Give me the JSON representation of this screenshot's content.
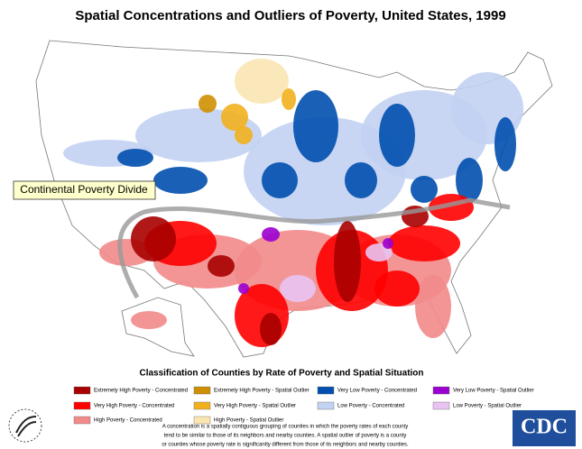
{
  "header": {
    "title": "Spatial Concentrations and Outliers of Poverty, United States, 1999"
  },
  "map": {
    "annotation": "Continental Poverty Divide"
  },
  "legend": {
    "title": "Classification of Counties by Rate of Poverty and Spatial Situation",
    "items": [
      {
        "label": "Extremely High Poverty - Concentrated",
        "color": "#a80000"
      },
      {
        "label": "Very High Poverty - Concentrated",
        "color": "#ff0000"
      },
      {
        "label": "High Poverty - Concentrated",
        "color": "#f28a8a"
      },
      {
        "label": "Extremely High Poverty - Spatial Outlier",
        "color": "#cf8f00"
      },
      {
        "label": "Very High Poverty - Spatial Outlier",
        "color": "#f2b01e"
      },
      {
        "label": "High Poverty - Spatial Outlier",
        "color": "#fbe6b2"
      },
      {
        "label": "Very Low Poverty - Concentrated",
        "color": "#004fae"
      },
      {
        "label": "Low Poverty - Concentrated",
        "color": "#c2d2f2"
      },
      {
        "label": "Very Low Poverty - Spatial Outlier",
        "color": "#9b00d0"
      },
      {
        "label": "Low Poverty - Spatial Outlier",
        "color": "#e9c3f2"
      }
    ]
  },
  "footnote": [
    "A concentration is a spatially contiguous grouping of counties in which the poverty rates of each county",
    "tend to be similar to those of its neighbors and nearby counties.  A spatial outlier of poverty is a county",
    "or counties whose poverty rate is significantly different from those of its neighbors and nearby counties."
  ],
  "logo": "CDC"
}
